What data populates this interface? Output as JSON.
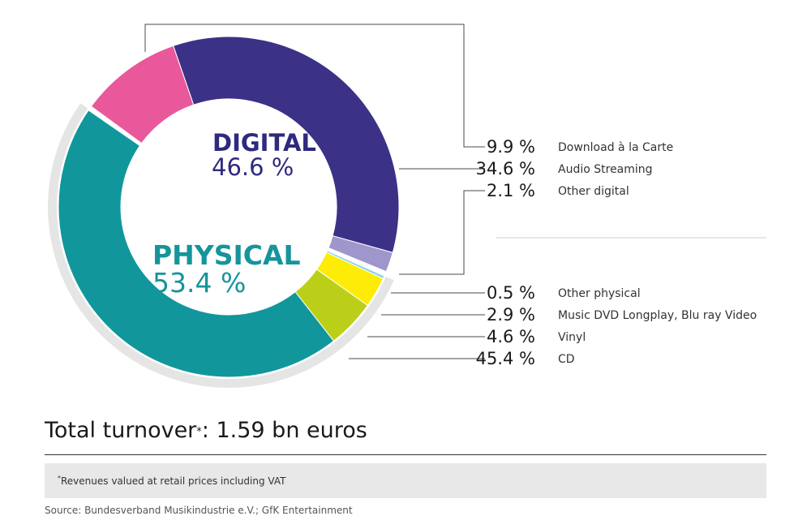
{
  "chart_data": {
    "type": "pie",
    "groups": [
      {
        "label": "DIGITAL",
        "percent": "46.6 %",
        "color": "#3b3186",
        "segments": [
          {
            "name": "Download à la Carte",
            "value": 9.9,
            "display": "9.9 %",
            "color": "#e8589a"
          },
          {
            "name": "Audio Streaming",
            "value": 34.6,
            "display": "34.6 %",
            "color": "#3b3186"
          },
          {
            "name": "Other digital",
            "value": 2.1,
            "display": "2.1 %",
            "color": "#9f96cc"
          }
        ]
      },
      {
        "label": "PHYSICAL",
        "percent": "53.4 %",
        "color": "#16949b",
        "segments": [
          {
            "name": "Other physical",
            "value": 0.5,
            "display": "0.5 %",
            "color": "#8dd3e6"
          },
          {
            "name": "Music DVD Longplay, Blu ray Video",
            "value": 2.9,
            "display": "2.9 %",
            "color": "#fcec08"
          },
          {
            "name": "Vinyl",
            "value": 4.6,
            "display": "4.6 %",
            "color": "#bccf18"
          },
          {
            "name": "CD",
            "value": 45.4,
            "display": "45.4 %",
            "color": "#11979b"
          }
        ]
      }
    ]
  },
  "summary": {
    "total_text": "Total turnover",
    "total_marker": "*",
    "total_value": ": 1.59 bn euros"
  },
  "footnote": {
    "marker": "*",
    "text": "Revenues valued at retail prices including VAT"
  },
  "source": "Source: Bundesverband Musikindustrie e.V.; GfK Entertainment"
}
